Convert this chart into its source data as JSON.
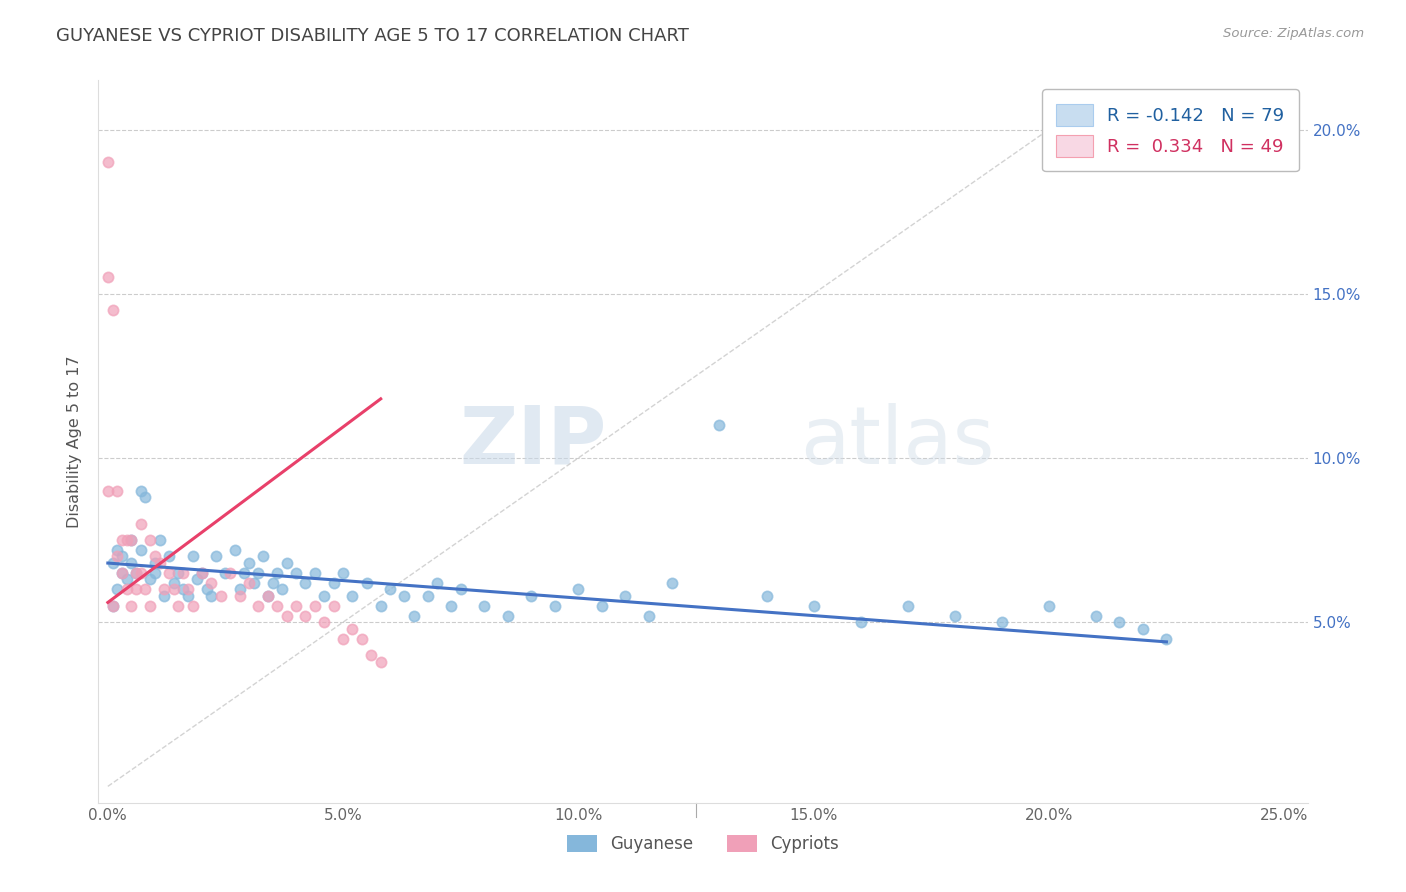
{
  "title": "GUYANESE VS CYPRIOT DISABILITY AGE 5 TO 17 CORRELATION CHART",
  "source": "Source: ZipAtlas.com",
  "ylabel": "Disability Age 5 to 17",
  "xlim": [
    -0.002,
    0.255
  ],
  "ylim": [
    -0.005,
    0.215
  ],
  "xticks": [
    0.0,
    0.05,
    0.1,
    0.15,
    0.2,
    0.25
  ],
  "xticklabels": [
    "0.0%",
    "5.0%",
    "10.0%",
    "15.0%",
    "20.0%",
    "25.0%"
  ],
  "yticks": [
    0.05,
    0.1,
    0.15,
    0.2
  ],
  "yticklabels": [
    "5.0%",
    "10.0%",
    "15.0%",
    "20.0%"
  ],
  "guyanese_color": "#85b7db",
  "cypriot_color": "#f0a0b8",
  "trend_guyanese_color": "#4472c4",
  "trend_cypriot_color": "#e8406a",
  "diag_color": "#c8c8c8",
  "R_guyanese": -0.142,
  "N_guyanese": 79,
  "R_cypriot": 0.334,
  "N_cypriot": 49,
  "watermark_zip": "ZIP",
  "watermark_atlas": "atlas",
  "guyanese_x": [
    0.001,
    0.001,
    0.002,
    0.002,
    0.003,
    0.003,
    0.004,
    0.005,
    0.005,
    0.006,
    0.007,
    0.007,
    0.008,
    0.009,
    0.01,
    0.01,
    0.011,
    0.012,
    0.013,
    0.014,
    0.015,
    0.016,
    0.017,
    0.018,
    0.019,
    0.02,
    0.021,
    0.022,
    0.023,
    0.025,
    0.027,
    0.028,
    0.029,
    0.03,
    0.031,
    0.032,
    0.033,
    0.034,
    0.035,
    0.036,
    0.037,
    0.038,
    0.04,
    0.042,
    0.044,
    0.046,
    0.048,
    0.05,
    0.052,
    0.055,
    0.058,
    0.06,
    0.063,
    0.065,
    0.068,
    0.07,
    0.073,
    0.075,
    0.08,
    0.085,
    0.09,
    0.095,
    0.1,
    0.105,
    0.11,
    0.115,
    0.12,
    0.13,
    0.14,
    0.15,
    0.16,
    0.17,
    0.18,
    0.19,
    0.2,
    0.21,
    0.215,
    0.22,
    0.225
  ],
  "guyanese_y": [
    0.068,
    0.055,
    0.072,
    0.06,
    0.065,
    0.07,
    0.063,
    0.068,
    0.075,
    0.065,
    0.09,
    0.072,
    0.088,
    0.063,
    0.065,
    0.068,
    0.075,
    0.058,
    0.07,
    0.062,
    0.065,
    0.06,
    0.058,
    0.07,
    0.063,
    0.065,
    0.06,
    0.058,
    0.07,
    0.065,
    0.072,
    0.06,
    0.065,
    0.068,
    0.062,
    0.065,
    0.07,
    0.058,
    0.062,
    0.065,
    0.06,
    0.068,
    0.065,
    0.062,
    0.065,
    0.058,
    0.062,
    0.065,
    0.058,
    0.062,
    0.055,
    0.06,
    0.058,
    0.052,
    0.058,
    0.062,
    0.055,
    0.06,
    0.055,
    0.052,
    0.058,
    0.055,
    0.06,
    0.055,
    0.058,
    0.052,
    0.062,
    0.11,
    0.058,
    0.055,
    0.05,
    0.055,
    0.052,
    0.05,
    0.055,
    0.052,
    0.05,
    0.048,
    0.045
  ],
  "cypriot_x": [
    0.0,
    0.0,
    0.0,
    0.001,
    0.001,
    0.002,
    0.002,
    0.003,
    0.003,
    0.004,
    0.004,
    0.005,
    0.005,
    0.006,
    0.006,
    0.007,
    0.007,
    0.008,
    0.009,
    0.009,
    0.01,
    0.011,
    0.012,
    0.013,
    0.014,
    0.015,
    0.016,
    0.017,
    0.018,
    0.02,
    0.022,
    0.024,
    0.026,
    0.028,
    0.03,
    0.032,
    0.034,
    0.036,
    0.038,
    0.04,
    0.042,
    0.044,
    0.046,
    0.048,
    0.05,
    0.052,
    0.054,
    0.056,
    0.058
  ],
  "cypriot_y": [
    0.19,
    0.155,
    0.09,
    0.145,
    0.055,
    0.09,
    0.07,
    0.075,
    0.065,
    0.075,
    0.06,
    0.075,
    0.055,
    0.065,
    0.06,
    0.08,
    0.065,
    0.06,
    0.075,
    0.055,
    0.07,
    0.068,
    0.06,
    0.065,
    0.06,
    0.055,
    0.065,
    0.06,
    0.055,
    0.065,
    0.062,
    0.058,
    0.065,
    0.058,
    0.062,
    0.055,
    0.058,
    0.055,
    0.052,
    0.055,
    0.052,
    0.055,
    0.05,
    0.055,
    0.045,
    0.048,
    0.045,
    0.04,
    0.038
  ],
  "trend_g_x0": 0.0,
  "trend_g_x1": 0.225,
  "trend_g_y0": 0.068,
  "trend_g_y1": 0.044,
  "trend_c_x0": 0.0,
  "trend_c_x1": 0.058,
  "trend_c_y0": 0.056,
  "trend_c_y1": 0.118
}
